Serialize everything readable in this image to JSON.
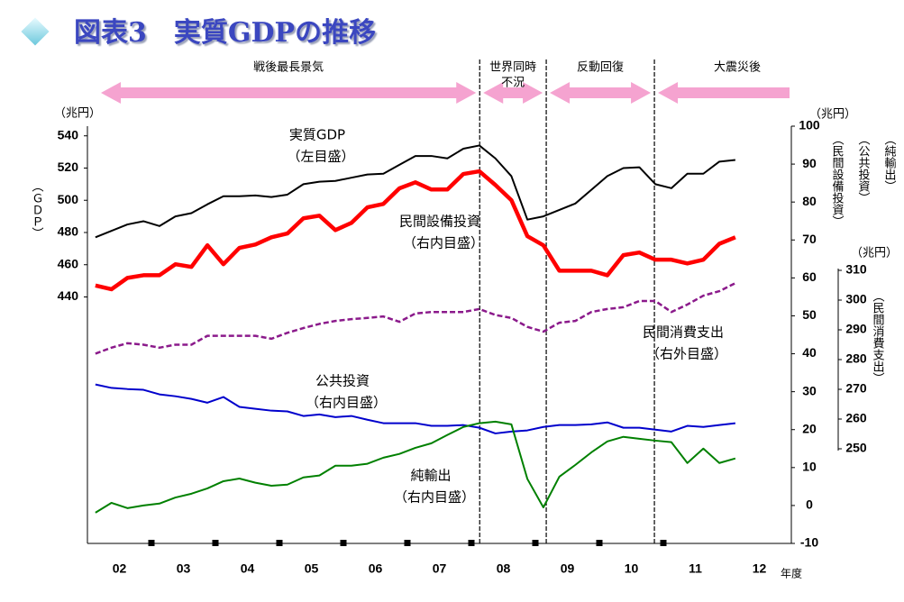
{
  "chart_data": {
    "type": "line",
    "title": "図表3　実質GDPの推移",
    "x": [
      2.125,
      2.375,
      2.625,
      2.875,
      3.125,
      3.375,
      3.625,
      3.875,
      4.125,
      4.375,
      4.625,
      4.875,
      5.125,
      5.375,
      5.625,
      5.875,
      6.125,
      6.375,
      6.625,
      6.875,
      7.125,
      7.375,
      7.625,
      7.875,
      8.125,
      8.375,
      8.625,
      8.875,
      9.125,
      9.375,
      9.625,
      9.875,
      10.125,
      10.375,
      10.625,
      10.875,
      11.125,
      11.375,
      11.625,
      11.875,
      12.125
    ],
    "xlim": [
      2,
      13
    ],
    "xticks": [
      {
        "value": 2.5,
        "label": "02"
      },
      {
        "value": 3.5,
        "label": "03"
      },
      {
        "value": 4.5,
        "label": "04"
      },
      {
        "value": 5.5,
        "label": "05"
      },
      {
        "value": 6.5,
        "label": "06"
      },
      {
        "value": 7.5,
        "label": "07"
      },
      {
        "value": 8.5,
        "label": "08"
      },
      {
        "value": 9.5,
        "label": "09"
      },
      {
        "value": 10.5,
        "label": "10"
      },
      {
        "value": 11.5,
        "label": "11"
      },
      {
        "value": 12.5,
        "label": "12"
      }
    ],
    "x_label": "年度",
    "ylim": [
      287,
      546
    ],
    "yticks": [
      440,
      460,
      480,
      500,
      520,
      540
    ],
    "y_unit": "（兆円）",
    "y_label": "（ＧＤＰ）",
    "y2lim": [
      -10,
      100
    ],
    "y2ticks": [
      -10,
      0,
      10,
      20,
      30,
      40,
      50,
      60,
      70,
      80,
      90,
      100
    ],
    "y2_unit": "（兆円）",
    "y2_labels": [
      "（民間設備投資）",
      "（公共投資）",
      "（純輸出）"
    ],
    "y3lim": [
      250,
      310
    ],
    "y3ticks": [
      250,
      260,
      270,
      280,
      290,
      300,
      310
    ],
    "y3_unit": "（兆円）",
    "y3_label": "（民間消費支出）",
    "period_breaks": [
      8.13,
      9.17,
      10.86
    ],
    "periods": [
      [
        "戦後最長景気"
      ],
      [
        "世界同時",
        "不況"
      ],
      [
        "反動回復"
      ],
      [
        "大震災後"
      ]
    ],
    "series": [
      {
        "name": "実質GDP",
        "scale_note": "（左目盛）",
        "color": "#000000",
        "axis": "y",
        "line_width": 2,
        "dashed": false,
        "values": [
          477,
          481,
          485,
          487,
          484,
          490,
          492,
          497.5,
          502.5,
          502.5,
          503,
          502,
          503.5,
          510,
          511.5,
          512,
          514,
          516,
          516.5,
          522,
          527.5,
          527.5,
          526,
          532,
          534,
          526,
          515,
          488,
          490,
          494,
          498,
          506.5,
          515,
          520,
          520.5,
          510,
          507.5,
          516.5,
          516.5,
          524,
          525
        ]
      },
      {
        "name": "民間設備投資",
        "scale_note": "（右内目盛）",
        "color": "#ff0000",
        "axis": "y2",
        "line_width": 4.5,
        "dashed": false,
        "values": [
          58,
          57,
          60,
          60.7,
          60.7,
          63.6,
          62.9,
          68.6,
          63.6,
          67.9,
          68.8,
          70.7,
          71.7,
          75.7,
          76.4,
          72.6,
          74.5,
          78.6,
          79.5,
          83.6,
          85.2,
          83.3,
          83.3,
          87.4,
          88.1,
          84.5,
          80.5,
          71,
          68.6,
          61.9,
          61.9,
          61.9,
          60.7,
          66,
          66.7,
          64.8,
          64.8,
          63.8,
          64.8,
          69,
          70.7
        ]
      },
      {
        "name": "民間消費支出",
        "scale_note": "（右外目盛）",
        "color": "#8b1a8b",
        "axis": "y3",
        "line_width": 2.5,
        "dashed": true,
        "values": [
          282,
          284,
          285.5,
          285,
          284,
          285,
          285,
          288,
          288,
          288,
          288,
          287,
          289,
          290.6,
          292,
          293,
          293.6,
          294,
          294.5,
          292.7,
          295.5,
          296,
          296,
          296,
          297,
          295,
          294,
          291,
          289.4,
          292.4,
          293,
          296,
          297,
          297.6,
          299.7,
          299.7,
          296,
          298.5,
          301.5,
          303,
          305.7
        ]
      },
      {
        "name": "公共投資",
        "scale_note": "（右内目盛）",
        "color": "#0000cc",
        "axis": "y2",
        "line_width": 2,
        "dashed": false,
        "values": [
          31.9,
          31,
          30.7,
          30.5,
          29.3,
          28.8,
          28.1,
          27.1,
          28.6,
          26,
          25.5,
          25,
          24.8,
          23.6,
          24,
          23.3,
          23.6,
          22.6,
          21.7,
          21.7,
          21.7,
          21,
          21,
          21.2,
          20.5,
          19,
          19.5,
          19.8,
          20.7,
          21.2,
          21.2,
          21.4,
          21.9,
          20.5,
          20.5,
          20,
          19.5,
          21,
          20.7,
          21.2,
          21.7
        ]
      },
      {
        "name": "純輸出",
        "scale_note": "（右内目盛）",
        "color": "#008000",
        "axis": "y2",
        "line_width": 2,
        "dashed": false,
        "values": [
          -1.9,
          0.7,
          -0.7,
          0,
          0.5,
          2.1,
          3.1,
          4.5,
          6.4,
          7.1,
          6,
          5.2,
          5.5,
          7.4,
          7.9,
          10.5,
          10.5,
          11,
          12.6,
          13.6,
          15.2,
          16.4,
          18.6,
          20.7,
          21.7,
          22.1,
          21.4,
          7,
          -0.5,
          7.6,
          10.7,
          14,
          16.9,
          18.1,
          17.6,
          17.1,
          16.7,
          11.2,
          15,
          11.2,
          12.4
        ]
      }
    ]
  }
}
